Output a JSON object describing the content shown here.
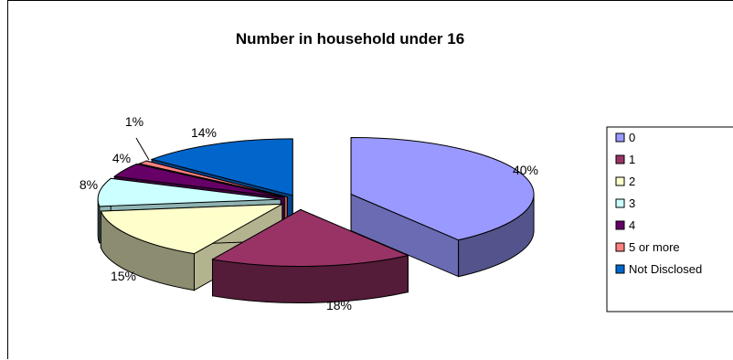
{
  "chart_data": {
    "type": "pie",
    "title": "Number in household under 16",
    "series": [
      {
        "name": "0",
        "value": 40,
        "label": "40%",
        "color": "#9999FF"
      },
      {
        "name": "1",
        "value": 18,
        "label": "18%",
        "color": "#993366"
      },
      {
        "name": "2",
        "value": 15,
        "label": "15%",
        "color": "#FFFFCC"
      },
      {
        "name": "3",
        "value": 8,
        "label": "8%",
        "color": "#CCFFFF"
      },
      {
        "name": "4",
        "value": 4,
        "label": "4%",
        "color": "#660066"
      },
      {
        "name": "5 or more",
        "value": 1,
        "label": "1%",
        "color": "#FF8080"
      },
      {
        "name": "Not Disclosed",
        "value": 14,
        "label": "14%",
        "color": "#0066CC"
      }
    ],
    "legend_position": "right",
    "style": "3d-exploded"
  }
}
